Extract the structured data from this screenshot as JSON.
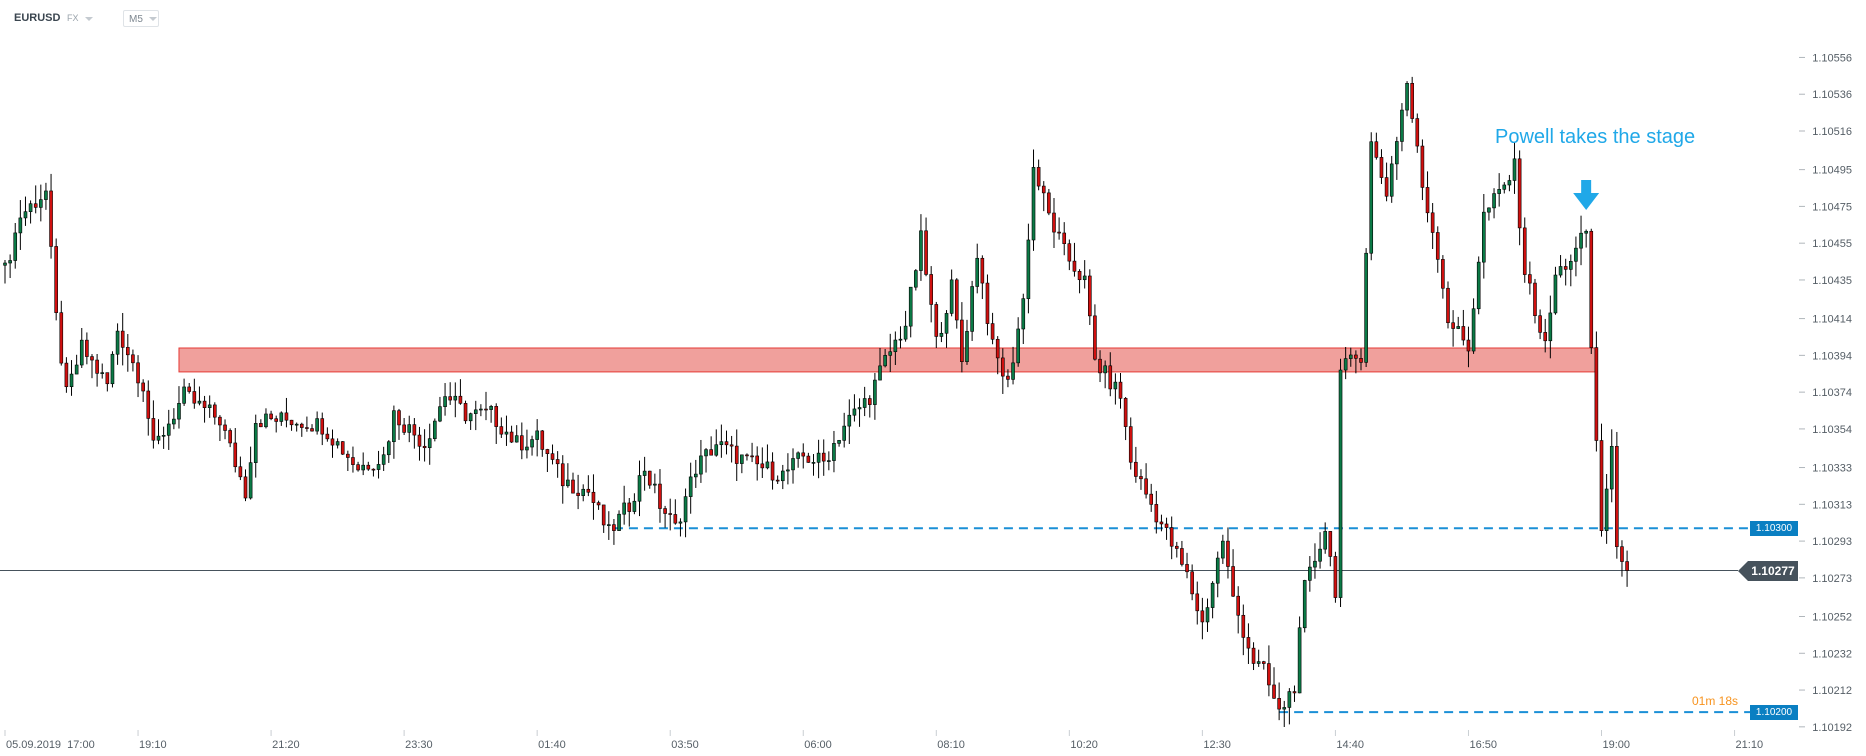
{
  "header": {
    "symbol": "EURUSD",
    "market": "FX",
    "timeframe": "M5"
  },
  "annotation": {
    "text": "Powell takes the stage",
    "color": "#20a8e8",
    "arrow_icon": "arrow-down-icon",
    "arrow_bar": 309
  },
  "current_price": {
    "label": "1.10277",
    "value": 1.10277
  },
  "countdown": "01m 18s",
  "levels": [
    {
      "label": "1.10300",
      "value": 1.103,
      "from_bar": 119,
      "color": "#1a8fd6"
    },
    {
      "label": "1.10200",
      "value": 1.102,
      "from_bar": 249,
      "color": "#1a8fd6"
    }
  ],
  "zone": {
    "from_bar": 34,
    "to_bar": 311,
    "top": 1.10398,
    "bottom": 1.10385,
    "fill": "#f0a09c",
    "stroke": "#e53935"
  },
  "colors": {
    "up": "#0b7a46",
    "down": "#d0100f",
    "wick": "#000000"
  },
  "chart_data": {
    "type": "candlestick",
    "timeframe": "M5",
    "start_time": "05.09.2019 17:00",
    "ylim": [
      1.10189,
      1.10592
    ],
    "y_ticks": [
      "1.10556",
      "1.10536",
      "1.10516",
      "1.10495",
      "1.10475",
      "1.10455",
      "1.10435",
      "1.10414",
      "1.10394",
      "1.10374",
      "1.10354",
      "1.10333",
      "1.10313",
      "1.10293",
      "1.10273",
      "1.10252",
      "1.10232",
      "1.10212",
      "1.10192"
    ],
    "x_ticks": [
      {
        "bar": 0,
        "label": "05.09.2019  17:00"
      },
      {
        "bar": 26,
        "label": "19:10"
      },
      {
        "bar": 52,
        "label": "21:20"
      },
      {
        "bar": 78,
        "label": "23:30"
      },
      {
        "bar": 104,
        "label": "01:40"
      },
      {
        "bar": 130,
        "label": "03:50"
      },
      {
        "bar": 156,
        "label": "06:00"
      },
      {
        "bar": 182,
        "label": "08:10"
      },
      {
        "bar": 208,
        "label": "10:20"
      },
      {
        "bar": 234,
        "label": "12:30"
      },
      {
        "bar": 260,
        "label": "14:40"
      },
      {
        "bar": 286,
        "label": "16:50"
      },
      {
        "bar": 312,
        "label": "19:00"
      },
      {
        "bar": 338,
        "label": "21:10"
      }
    ],
    "close_path": [
      [
        0,
        1.1044
      ],
      [
        3,
        1.1047
      ],
      [
        8,
        1.10483
      ],
      [
        10,
        1.10414
      ],
      [
        12,
        1.10372
      ],
      [
        15,
        1.10398
      ],
      [
        20,
        1.10378
      ],
      [
        22,
        1.10408
      ],
      [
        27,
        1.10378
      ],
      [
        29,
        1.10343
      ],
      [
        35,
        1.10372
      ],
      [
        42,
        1.10359
      ],
      [
        47,
        1.1032
      ],
      [
        49,
        1.10359
      ],
      [
        56,
        1.10359
      ],
      [
        62,
        1.10356
      ],
      [
        69,
        1.10333
      ],
      [
        74,
        1.10339
      ],
      [
        76,
        1.10362
      ],
      [
        82,
        1.10346
      ],
      [
        86,
        1.10373
      ],
      [
        90,
        1.10362
      ],
      [
        95,
        1.10362
      ],
      [
        100,
        1.10346
      ],
      [
        104,
        1.10349
      ],
      [
        109,
        1.10326
      ],
      [
        114,
        1.1032
      ],
      [
        118,
        1.10297
      ],
      [
        122,
        1.10313
      ],
      [
        125,
        1.10333
      ],
      [
        128,
        1.10313
      ],
      [
        131,
        1.103
      ],
      [
        135,
        1.10333
      ],
      [
        139,
        1.10346
      ],
      [
        145,
        1.10336
      ],
      [
        152,
        1.10329
      ],
      [
        156,
        1.10339
      ],
      [
        160,
        1.10336
      ],
      [
        164,
        1.10356
      ],
      [
        169,
        1.10372
      ],
      [
        172,
        1.10391
      ],
      [
        176,
        1.10411
      ],
      [
        179,
        1.10457
      ],
      [
        182,
        1.10401
      ],
      [
        185,
        1.10431
      ],
      [
        187,
        1.10391
      ],
      [
        190,
        1.1045
      ],
      [
        193,
        1.10398
      ],
      [
        196,
        1.10378
      ],
      [
        199,
        1.10424
      ],
      [
        201,
        1.10496
      ],
      [
        204,
        1.1047
      ],
      [
        207,
        1.1045
      ],
      [
        211,
        1.10434
      ],
      [
        213,
        1.10391
      ],
      [
        218,
        1.10372
      ],
      [
        220,
        1.10336
      ],
      [
        224,
        1.10313
      ],
      [
        227,
        1.10297
      ],
      [
        231,
        1.10274
      ],
      [
        234,
        1.10248
      ],
      [
        238,
        1.10294
      ],
      [
        240,
        1.10261
      ],
      [
        244,
        1.10228
      ],
      [
        246,
        1.10222
      ],
      [
        249,
        1.10199
      ],
      [
        252,
        1.10215
      ],
      [
        254,
        1.10267
      ],
      [
        258,
        1.103
      ],
      [
        260,
        1.10267
      ],
      [
        261,
        1.10385
      ],
      [
        265,
        1.10395
      ],
      [
        267,
        1.10509
      ],
      [
        270,
        1.10483
      ],
      [
        274,
        1.10542
      ],
      [
        277,
        1.10486
      ],
      [
        280,
        1.1045
      ],
      [
        282,
        1.10414
      ],
      [
        286,
        1.10398
      ],
      [
        289,
        1.1047
      ],
      [
        293,
        1.10486
      ],
      [
        295,
        1.10496
      ],
      [
        297,
        1.1044
      ],
      [
        301,
        1.10398
      ],
      [
        303,
        1.10437
      ],
      [
        307,
        1.1045
      ],
      [
        309,
        1.10462
      ],
      [
        310,
        1.10397
      ],
      [
        312,
        1.103
      ],
      [
        314,
        1.1034
      ],
      [
        315,
        1.10294
      ],
      [
        317,
        1.10277
      ]
    ]
  }
}
